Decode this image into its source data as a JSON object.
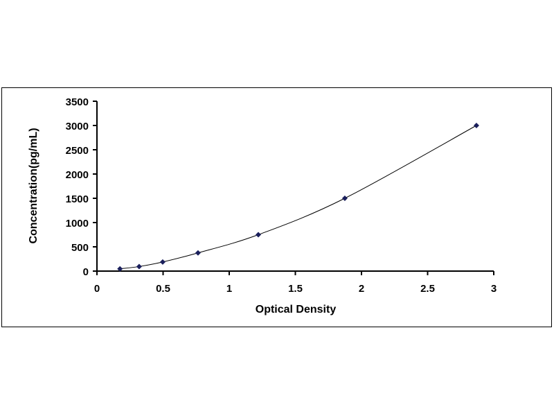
{
  "chart_data": {
    "type": "scatter",
    "title": "",
    "xlabel": "Optical Density",
    "ylabel": "Concentration(pg/mL)",
    "xlim": [
      0,
      3
    ],
    "ylim": [
      0,
      3500
    ],
    "xticks": [
      "0",
      "0.5",
      "1",
      "1.5",
      "2",
      "2.5",
      "3"
    ],
    "yticks": [
      "0",
      "500",
      "1000",
      "1500",
      "2000",
      "2500",
      "3000",
      "3500"
    ],
    "grid": false,
    "trendline": "smooth curve",
    "marker": "diamond",
    "colors": {
      "marker": "#1a1f5c",
      "line": "#000000"
    },
    "series": [
      {
        "x": [
          0.174,
          0.319,
          0.497,
          0.764,
          1.22,
          1.874,
          2.869
        ],
        "y": [
          46.88,
          93.75,
          187.5,
          375,
          750,
          1500,
          3000
        ]
      }
    ]
  }
}
